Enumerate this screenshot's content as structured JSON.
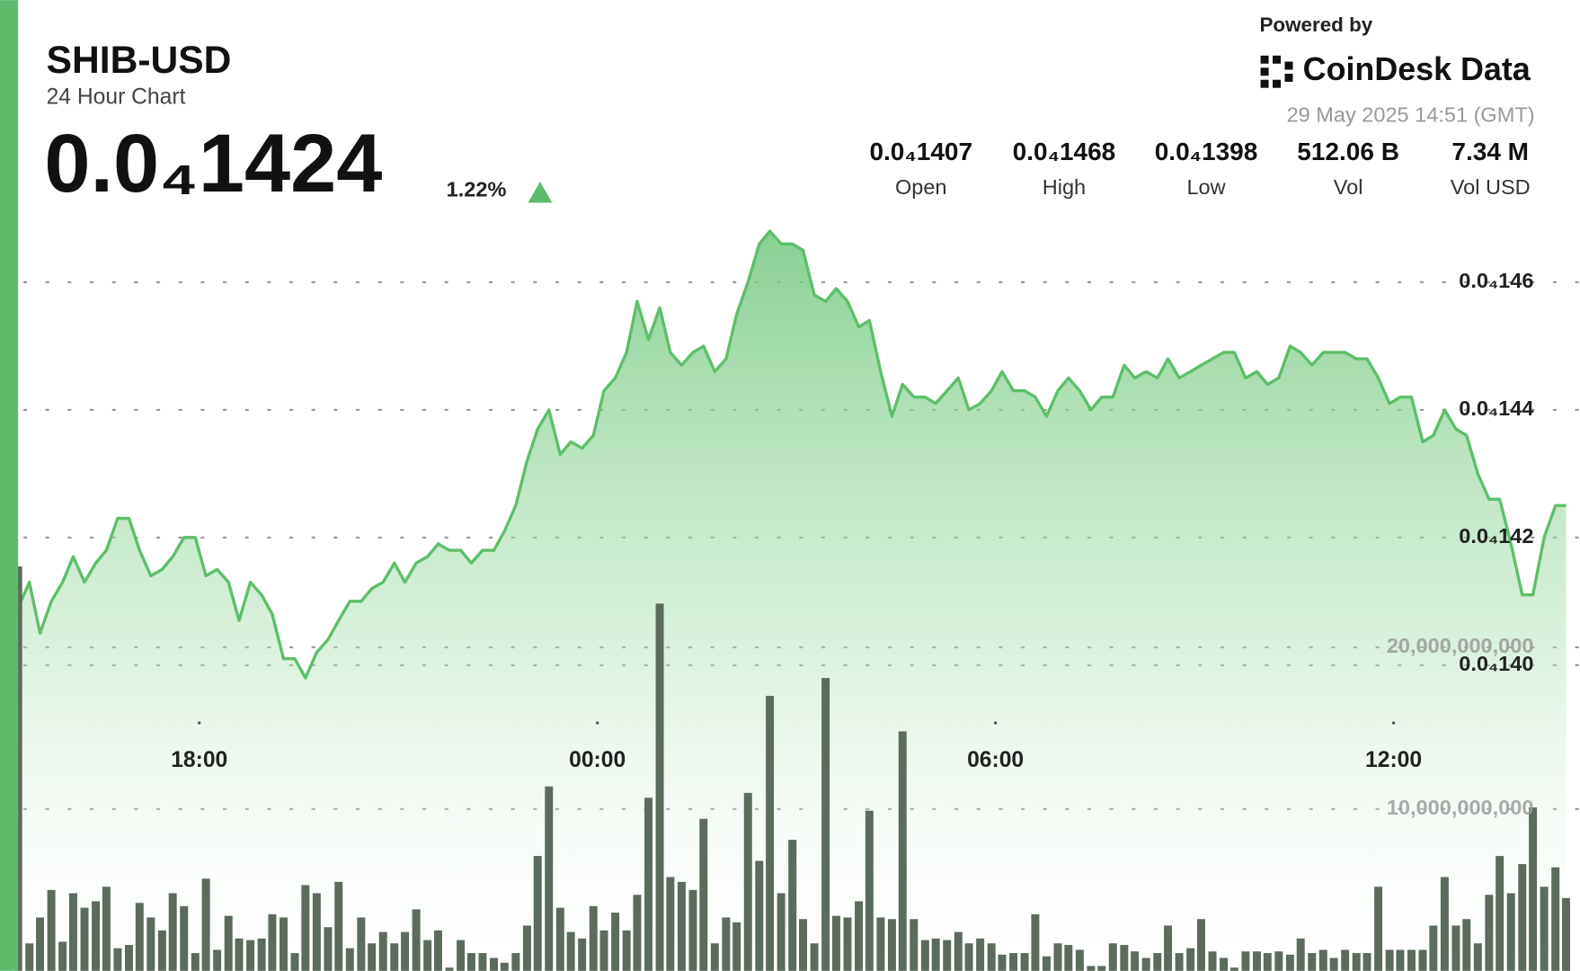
{
  "header": {
    "symbol": "SHIB-USD",
    "subtitle": "24 Hour Chart",
    "price": "0.0₄1424",
    "change": "1.22%",
    "powered_by": "Powered by",
    "brand": "CoinDesk Data",
    "timestamp": "29 May 2025 14:51 (GMT)",
    "stats": [
      {
        "value": "0.0₄1407",
        "label": "Open"
      },
      {
        "value": "0.0₄1468",
        "label": "High"
      },
      {
        "value": "0.0₄1398",
        "label": "Low"
      },
      {
        "value": "512.06 B",
        "label": "Vol"
      },
      {
        "value": "7.34 M",
        "label": "Vol USD"
      }
    ]
  },
  "chart_data": {
    "type": "line",
    "grid": true,
    "x": [
      15.27,
      15.44,
      15.6,
      15.77,
      15.94,
      16.1,
      16.27,
      16.44,
      16.6,
      16.77,
      16.94,
      17.1,
      17.27,
      17.44,
      17.6,
      17.77,
      17.94,
      18.1,
      18.27,
      18.44,
      18.6,
      18.77,
      18.94,
      19.1,
      19.27,
      19.44,
      19.6,
      19.77,
      19.94,
      20.1,
      20.27,
      20.44,
      20.6,
      20.77,
      20.94,
      21.1,
      21.27,
      21.44,
      21.6,
      21.77,
      21.94,
      22.1,
      22.27,
      22.44,
      22.6,
      22.77,
      22.94,
      23.1,
      23.27,
      23.44,
      23.6,
      23.77,
      23.94,
      24.1,
      24.27,
      24.44,
      24.6,
      24.77,
      24.94,
      25.1,
      25.27,
      25.44,
      25.6,
      25.77,
      25.94,
      26.1,
      26.27,
      26.44,
      26.6,
      26.77,
      26.94,
      27.1,
      27.27,
      27.44,
      27.6,
      27.77,
      27.94,
      28.1,
      28.27,
      28.44,
      28.6,
      28.77,
      28.94,
      29.1,
      29.27,
      29.44,
      29.6,
      29.77,
      29.94,
      30.1,
      30.27,
      30.44,
      30.6,
      30.77,
      30.94,
      31.1,
      31.27,
      31.44,
      31.6,
      31.77,
      31.94,
      32.1,
      32.27,
      32.44,
      32.6,
      32.77,
      32.94,
      33.1,
      33.27,
      33.44,
      33.6,
      33.77,
      33.94,
      34.1,
      34.27,
      34.44,
      34.6,
      34.77,
      34.94,
      35.1,
      35.27,
      35.44,
      35.6,
      35.77,
      35.94,
      36.1,
      36.27,
      36.44,
      36.6,
      36.77,
      36.94,
      37.1,
      37.27,
      37.44,
      37.6,
      37.77,
      37.94,
      38.1,
      38.27,
      38.44,
      38.6
    ],
    "xlim": [
      15.27,
      38.81
    ],
    "xticks": [
      {
        "value": 18,
        "label": "18:00"
      },
      {
        "value": 24,
        "label": "00:00"
      },
      {
        "value": 30,
        "label": "06:00"
      },
      {
        "value": 36,
        "label": "12:00"
      }
    ],
    "ylim": [
      1.3521e-05,
      1.5042e-05
    ],
    "yticks": [
      {
        "value": 1.4e-05,
        "label": "0.0₄140"
      },
      {
        "value": 1.42e-05,
        "label": "0.0₄142"
      },
      {
        "value": 1.44e-05,
        "label": "0.0₄144"
      },
      {
        "value": 1.46e-05,
        "label": "0.0₄146"
      }
    ],
    "y2lim": [
      0,
      60000000000
    ],
    "y2ticks": [
      {
        "value": 10000000000,
        "label": "10,000,000,000"
      },
      {
        "value": 20000000000,
        "label": "20,000,000,000"
      }
    ],
    "series": [
      {
        "type": "line",
        "color": "#5cbf6a",
        "values": [
          1.409e-05,
          1.413e-05,
          1.405e-05,
          1.41e-05,
          1.413e-05,
          1.417e-05,
          1.413e-05,
          1.416e-05,
          1.418e-05,
          1.423e-05,
          1.423e-05,
          1.418e-05,
          1.414e-05,
          1.415e-05,
          1.417e-05,
          1.42e-05,
          1.42e-05,
          1.414e-05,
          1.415e-05,
          1.413e-05,
          1.407e-05,
          1.413e-05,
          1.411e-05,
          1.408e-05,
          1.401e-05,
          1.401e-05,
          1.398e-05,
          1.402e-05,
          1.404e-05,
          1.407e-05,
          1.41e-05,
          1.41e-05,
          1.412e-05,
          1.413e-05,
          1.416e-05,
          1.413e-05,
          1.416e-05,
          1.417e-05,
          1.419e-05,
          1.418e-05,
          1.418e-05,
          1.416e-05,
          1.418e-05,
          1.418e-05,
          1.421e-05,
          1.425e-05,
          1.432e-05,
          1.437e-05,
          1.44e-05,
          1.433e-05,
          1.435e-05,
          1.434e-05,
          1.436e-05,
          1.443e-05,
          1.445e-05,
          1.449e-05,
          1.457e-05,
          1.451e-05,
          1.456e-05,
          1.449e-05,
          1.447e-05,
          1.449e-05,
          1.45e-05,
          1.446e-05,
          1.448e-05,
          1.455e-05,
          1.46e-05,
          1.466e-05,
          1.468e-05,
          1.466e-05,
          1.466e-05,
          1.465e-05,
          1.458e-05,
          1.457e-05,
          1.459e-05,
          1.457e-05,
          1.453e-05,
          1.454e-05,
          1.446e-05,
          1.439e-05,
          1.444e-05,
          1.442e-05,
          1.442e-05,
          1.441e-05,
          1.443e-05,
          1.445e-05,
          1.44e-05,
          1.441e-05,
          1.443e-05,
          1.446e-05,
          1.443e-05,
          1.443e-05,
          1.442e-05,
          1.439e-05,
          1.443e-05,
          1.445e-05,
          1.443e-05,
          1.44e-05,
          1.442e-05,
          1.442e-05,
          1.447e-05,
          1.445e-05,
          1.446e-05,
          1.445e-05,
          1.448e-05,
          1.445e-05,
          1.446e-05,
          1.447e-05,
          1.448e-05,
          1.449e-05,
          1.449e-05,
          1.445e-05,
          1.446e-05,
          1.444e-05,
          1.445e-05,
          1.45e-05,
          1.449e-05,
          1.447e-05,
          1.449e-05,
          1.449e-05,
          1.449e-05,
          1.448e-05,
          1.448e-05,
          1.445e-05,
          1.441e-05,
          1.442e-05,
          1.442e-05,
          1.435e-05,
          1.436e-05,
          1.44e-05,
          1.437e-05,
          1.436e-05,
          1.43e-05,
          1.426e-05,
          1.426e-05,
          1.419e-05,
          1.411e-05,
          1.411e-05,
          1.42e-05,
          1.425e-05,
          1.425e-05
        ]
      },
      {
        "type": "bar",
        "axis": "y2",
        "color": "#5b6b5c",
        "values": [
          25000000000,
          1700000000,
          3300000000,
          5000000000,
          1800000000,
          4800000000,
          3900000000,
          4300000000,
          5200000000,
          1400000000,
          1600000000,
          4200000000,
          3300000000,
          2500000000,
          4800000000,
          4000000000,
          1100000000,
          5700000000,
          1300000000,
          3400000000,
          2000000000,
          1900000000,
          2000000000,
          3500000000,
          3300000000,
          1100000000,
          5300000000,
          4800000000,
          2700000000,
          5500000000,
          1400000000,
          3300000000,
          1700000000,
          2400000000,
          1700000000,
          2400000000,
          3800000000,
          1900000000,
          2500000000,
          200000000,
          1900000000,
          1100000000,
          1100000000,
          800000000,
          500000000,
          1100000000,
          2800000000,
          7100000000,
          11400000000,
          3900000000,
          2400000000,
          2000000000,
          4000000000,
          2500000000,
          3600000000,
          2500000000,
          4700000000,
          10700000000,
          22700000000,
          5800000000,
          5500000000,
          5000000000,
          9400000000,
          1700000000,
          3300000000,
          3000000000,
          11000000000,
          6800000000,
          17000000000,
          4800000000,
          8100000000,
          3200000000,
          1700000000,
          18100000000,
          3400000000,
          3300000000,
          4300000000,
          9900000000,
          3300000000,
          3200000000,
          14800000000,
          3200000000,
          1900000000,
          2000000000,
          1900000000,
          2400000000,
          1700000000,
          2000000000,
          1700000000,
          1000000000,
          1100000000,
          1100000000,
          3500000000,
          900000000,
          1700000000,
          1600000000,
          1300000000,
          300000000,
          300000000,
          1700000000,
          1600000000,
          1200000000,
          800000000,
          1100000000,
          2800000000,
          1100000000,
          1400000000,
          3200000000,
          1200000000,
          800000000,
          200000000,
          1200000000,
          1200000000,
          1100000000,
          1200000000,
          1000000000,
          2000000000,
          1100000000,
          1300000000,
          800000000,
          1300000000,
          1100000000,
          1100000000,
          5200000000,
          1300000000,
          1300000000,
          1300000000,
          1300000000,
          2800000000,
          5800000000,
          2800000000,
          3200000000,
          1700000000,
          4700000000,
          7100000000,
          4800000000,
          6600000000,
          10100000000,
          5200000000,
          6400000000,
          4500000000
        ]
      }
    ]
  }
}
